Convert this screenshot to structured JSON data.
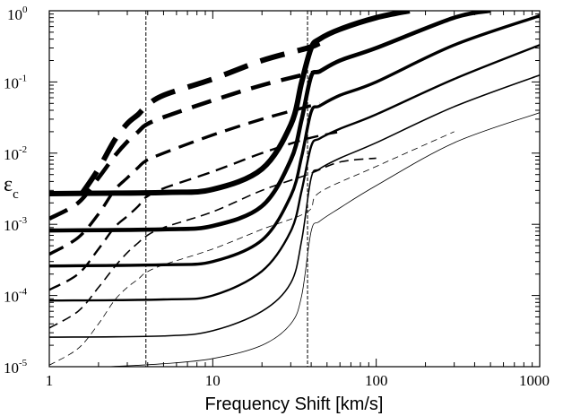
{
  "chart_data": {
    "type": "line",
    "title": "",
    "xlabel": "Frequency Shift [km/s]",
    "ylabel": {
      "symbol": "ε",
      "subscript": "c"
    },
    "xscale": "log",
    "yscale": "log",
    "xlim": [
      1,
      1000
    ],
    "ylim": [
      1e-05,
      1
    ],
    "x_tick_labels": [
      "1",
      "10",
      "100",
      "1000"
    ],
    "y_tick_labels": [
      {
        "base": "10",
        "exp": "-5"
      },
      {
        "base": "10",
        "exp": "-4"
      },
      {
        "base": "10",
        "exp": "-3"
      },
      {
        "base": "10",
        "exp": "-2"
      },
      {
        "base": "10",
        "exp": "-1"
      },
      {
        "base": "10",
        "exp": "0"
      }
    ],
    "grid": false,
    "legend": "none",
    "reference_lines": [
      {
        "orientation": "vertical",
        "x": 3.9,
        "style": "dashed"
      },
      {
        "orientation": "vertical",
        "x": 38,
        "style": "dashed"
      }
    ],
    "series": [
      {
        "style": "solid",
        "weight": 1,
        "points": [
          [
            2.3,
            1e-05
          ],
          [
            5,
            1.1e-05
          ],
          [
            10,
            1.3e-05
          ],
          [
            20,
            2e-05
          ],
          [
            30,
            4e-05
          ],
          [
            35,
            0.0001
          ],
          [
            40,
            0.0008
          ],
          [
            45,
            0.0011
          ],
          [
            60,
            0.0017
          ],
          [
            100,
            0.0035
          ],
          [
            300,
            0.014
          ],
          [
            1000,
            0.037
          ]
        ]
      },
      {
        "style": "solid",
        "weight": 2,
        "points": [
          [
            1,
            2.6e-05
          ],
          [
            5,
            2.7e-05
          ],
          [
            10,
            3.2e-05
          ],
          [
            20,
            6e-05
          ],
          [
            30,
            0.00015
          ],
          [
            35,
            0.0006
          ],
          [
            40,
            0.0045
          ],
          [
            45,
            0.006
          ],
          [
            60,
            0.0085
          ],
          [
            100,
            0.014
          ],
          [
            300,
            0.045
          ],
          [
            1000,
            0.125
          ]
        ]
      },
      {
        "style": "solid",
        "weight": 3,
        "points": [
          [
            1,
            8.5e-05
          ],
          [
            5,
            8.8e-05
          ],
          [
            10,
            0.0001
          ],
          [
            20,
            0.00022
          ],
          [
            30,
            0.0008
          ],
          [
            35,
            0.003
          ],
          [
            40,
            0.0125
          ],
          [
            45,
            0.016
          ],
          [
            60,
            0.022
          ],
          [
            100,
            0.035
          ],
          [
            300,
            0.11
          ],
          [
            1000,
            0.33
          ]
        ]
      },
      {
        "style": "solid",
        "weight": 4,
        "points": [
          [
            1,
            0.00026
          ],
          [
            5,
            0.00027
          ],
          [
            10,
            0.0003
          ],
          [
            20,
            0.0006
          ],
          [
            30,
            0.0025
          ],
          [
            35,
            0.009
          ],
          [
            40,
            0.038
          ],
          [
            45,
            0.046
          ],
          [
            60,
            0.065
          ],
          [
            100,
            0.1
          ],
          [
            300,
            0.33
          ],
          [
            1000,
            0.85
          ]
        ]
      },
      {
        "style": "solid",
        "weight": 5,
        "points": [
          [
            1,
            0.00082
          ],
          [
            5,
            0.00085
          ],
          [
            10,
            0.00095
          ],
          [
            20,
            0.0018
          ],
          [
            30,
            0.008
          ],
          [
            35,
            0.03
          ],
          [
            40,
            0.12
          ],
          [
            45,
            0.14
          ],
          [
            60,
            0.2
          ],
          [
            100,
            0.3
          ],
          [
            300,
            0.8
          ],
          [
            500,
            1.0
          ]
        ]
      },
      {
        "style": "solid",
        "weight": 6,
        "points": [
          [
            1,
            0.0027
          ],
          [
            5,
            0.0028
          ],
          [
            10,
            0.0031
          ],
          [
            20,
            0.006
          ],
          [
            30,
            0.025
          ],
          [
            35,
            0.1
          ],
          [
            40,
            0.3
          ],
          [
            45,
            0.4
          ],
          [
            60,
            0.55
          ],
          [
            100,
            0.8
          ],
          [
            160,
            1.0
          ]
        ]
      },
      {
        "style": "dashed",
        "weight": 1,
        "points": [
          [
            1,
            1.05e-05
          ],
          [
            1.5,
            1.8e-05
          ],
          [
            2,
            4e-05
          ],
          [
            2.5,
            8.5e-05
          ],
          [
            3,
            0.00013
          ],
          [
            3.5,
            0.00017
          ],
          [
            3.9,
            0.00021
          ],
          [
            5,
            0.00027
          ],
          [
            10,
            0.00045
          ],
          [
            20,
            0.00085
          ],
          [
            38,
            0.0015
          ],
          [
            45,
            0.0028
          ],
          [
            100,
            0.0065
          ],
          [
            300,
            0.02
          ]
        ]
      },
      {
        "style": "dashed",
        "weight": 2,
        "points": [
          [
            1,
            3.5e-05
          ],
          [
            1.5,
            6e-05
          ],
          [
            2,
            0.00013
          ],
          [
            2.5,
            0.00025
          ],
          [
            3,
            0.0004
          ],
          [
            3.5,
            0.00055
          ],
          [
            3.9,
            0.00068
          ],
          [
            5,
            0.0009
          ],
          [
            10,
            0.0015
          ],
          [
            20,
            0.003
          ],
          [
            38,
            0.005
          ],
          [
            60,
            0.0075
          ],
          [
            100,
            0.0085
          ]
        ]
      },
      {
        "style": "dashed",
        "weight": 3,
        "points": [
          [
            1,
            0.00012
          ],
          [
            1.5,
            0.0002
          ],
          [
            2,
            0.00045
          ],
          [
            2.5,
            0.0009
          ],
          [
            3,
            0.0013
          ],
          [
            3.5,
            0.0018
          ],
          [
            3.9,
            0.0024
          ],
          [
            5,
            0.0032
          ],
          [
            10,
            0.0055
          ],
          [
            20,
            0.01
          ],
          [
            38,
            0.016
          ],
          [
            60,
            0.02
          ]
        ]
      },
      {
        "style": "dashed",
        "weight": 4,
        "points": [
          [
            1,
            0.00038
          ],
          [
            1.5,
            0.00065
          ],
          [
            2,
            0.0014
          ],
          [
            2.5,
            0.003
          ],
          [
            3,
            0.0045
          ],
          [
            3.5,
            0.0063
          ],
          [
            3.9,
            0.0078
          ],
          [
            5,
            0.01
          ],
          [
            10,
            0.018
          ],
          [
            20,
            0.03
          ],
          [
            38,
            0.045
          ],
          [
            45,
            0.05
          ]
        ]
      },
      {
        "style": "dashed",
        "weight": 5,
        "points": [
          [
            1,
            0.0012
          ],
          [
            1.5,
            0.002
          ],
          [
            2,
            0.0045
          ],
          [
            2.5,
            0.009
          ],
          [
            3,
            0.0145
          ],
          [
            3.5,
            0.02
          ],
          [
            3.9,
            0.025
          ],
          [
            5,
            0.032
          ],
          [
            10,
            0.055
          ],
          [
            20,
            0.09
          ],
          [
            38,
            0.13
          ],
          [
            45,
            0.14
          ]
        ]
      },
      {
        "style": "dashed",
        "weight": 6,
        "points": [
          [
            1.6,
            0.0028
          ],
          [
            2,
            0.006
          ],
          [
            2.5,
            0.015
          ],
          [
            3,
            0.026
          ],
          [
            3.5,
            0.035
          ],
          [
            3.9,
            0.045
          ],
          [
            5,
            0.065
          ],
          [
            10,
            0.11
          ],
          [
            20,
            0.2
          ],
          [
            38,
            0.3
          ],
          [
            45,
            0.35
          ]
        ]
      }
    ]
  }
}
